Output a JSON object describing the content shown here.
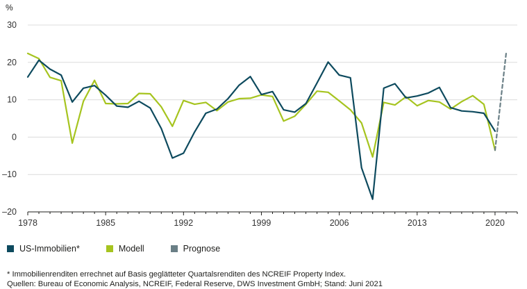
{
  "chart_data": {
    "type": "line",
    "unit_label": "%",
    "x_ticks": [
      "1978",
      "1985",
      "1992",
      "1999",
      "2006",
      "2013",
      "2020"
    ],
    "y_ticks": [
      "30",
      "20",
      "10",
      "0",
      "–10",
      "–20"
    ],
    "xlim": [
      1978,
      2022
    ],
    "ylim": [
      -20,
      30
    ],
    "grid": "horizontal",
    "legend_position": "bottom-left",
    "series": [
      {
        "name": "US-Immobilien*",
        "color": "#0d4a5e",
        "style": "solid",
        "x": [
          1978,
          1979,
          1980,
          1981,
          1982,
          1983,
          1984,
          1985,
          1986,
          1987,
          1988,
          1989,
          1990,
          1991,
          1992,
          1993,
          1994,
          1995,
          1996,
          1997,
          1998,
          1999,
          2000,
          2001,
          2002,
          2003,
          2004,
          2005,
          2006,
          2007,
          2008,
          2009,
          2010,
          2011,
          2012,
          2013,
          2014,
          2015,
          2016,
          2017,
          2018,
          2019,
          2020
        ],
        "values": [
          16.1,
          20.6,
          18.2,
          16.6,
          9.4,
          13.1,
          13.8,
          11.2,
          8.3,
          8.0,
          9.6,
          7.8,
          2.3,
          -5.6,
          -4.3,
          1.4,
          6.4,
          7.5,
          10.3,
          13.9,
          16.2,
          11.4,
          12.2,
          7.3,
          6.7,
          9.0,
          14.5,
          20.1,
          16.6,
          15.9,
          -8.2,
          -16.6,
          13.1,
          14.3,
          10.5,
          11.0,
          11.8,
          13.3,
          7.9,
          7.0,
          6.8,
          6.4,
          1.6
        ]
      },
      {
        "name": "Modell",
        "color": "#a6c41f",
        "style": "solid",
        "x": [
          1978,
          1979,
          1980,
          1981,
          1982,
          1983,
          1984,
          1985,
          1986,
          1987,
          1988,
          1989,
          1990,
          1991,
          1992,
          1993,
          1994,
          1995,
          1996,
          1997,
          1998,
          1999,
          2000,
          2001,
          2002,
          2003,
          2004,
          2005,
          2006,
          2007,
          2008,
          2009,
          2010,
          2011,
          2012,
          2013,
          2014,
          2015,
          2016,
          2017,
          2018,
          2019,
          2020
        ],
        "values": [
          22.4,
          21.0,
          16.0,
          15.1,
          -1.6,
          9.6,
          15.2,
          9.0,
          8.9,
          9.0,
          11.7,
          11.6,
          8.1,
          2.9,
          9.8,
          8.8,
          9.3,
          7.1,
          9.4,
          10.3,
          10.4,
          11.3,
          10.9,
          4.3,
          5.6,
          8.8,
          12.3,
          12.0,
          9.7,
          7.3,
          3.8,
          -5.3,
          9.3,
          8.6,
          10.8,
          8.4,
          9.8,
          9.4,
          7.5,
          9.5,
          11.1,
          8.8,
          -3.5
        ]
      },
      {
        "name": "Prognose",
        "color": "#6a7f86",
        "style": "dashed",
        "x": [
          2020,
          2021
        ],
        "values": [
          -3.5,
          22.5
        ]
      }
    ]
  },
  "footnotes": {
    "line1": "* Immobilienrenditen errechnet auf Basis geglätteter Quartalsrenditen des NCREIF Property Index.",
    "line2": "Quellen: Bureau of Economic Analysis, NCREIF, Federal Reserve, DWS Investment GmbH; Stand: Juni 2021"
  }
}
